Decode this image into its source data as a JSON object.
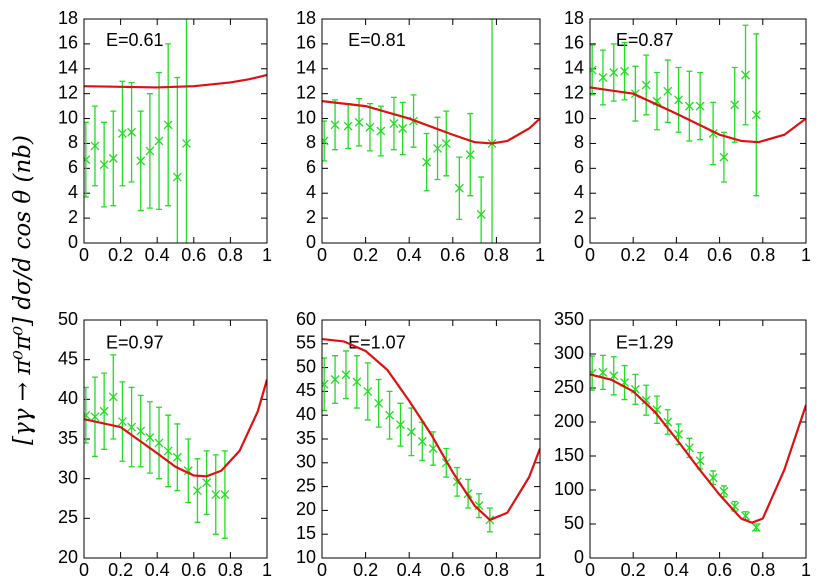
{
  "ylabel": "[γγ → π⁰π⁰] dσ/d cos θ (nb)",
  "chart_data": [
    {
      "type": "errorbar",
      "annotation": "E=0.61",
      "xlim": [
        0,
        1
      ],
      "ylim": [
        0,
        18
      ],
      "xticks": [
        0,
        0.2,
        0.4,
        0.6,
        0.8,
        1
      ],
      "yticks": [
        0,
        2,
        4,
        6,
        8,
        10,
        12,
        14,
        16,
        18
      ],
      "series": [
        {
          "type": "errorbar",
          "color": "#22dd22",
          "x": [
            0.01,
            0.06,
            0.11,
            0.16,
            0.21,
            0.26,
            0.31,
            0.36,
            0.41,
            0.46,
            0.51,
            0.56
          ],
          "values": [
            6.7,
            7.8,
            6.3,
            6.8,
            8.8,
            8.9,
            6.6,
            7.4,
            8.2,
            9.5,
            5.3,
            8.0
          ],
          "errors": [
            3.0,
            3.2,
            3.4,
            3.8,
            4.2,
            4.0,
            4.0,
            4.6,
            5.5,
            6.5,
            8.0,
            12.0
          ]
        },
        {
          "type": "line",
          "color": "#dd1111",
          "x": [
            0,
            0.2,
            0.4,
            0.6,
            0.8,
            0.9,
            1
          ],
          "values": [
            12.6,
            12.55,
            12.5,
            12.6,
            12.9,
            13.15,
            13.5
          ]
        }
      ]
    },
    {
      "type": "errorbar",
      "annotation": "E=0.81",
      "xlim": [
        0,
        1
      ],
      "ylim": [
        0,
        18
      ],
      "xticks": [
        0,
        0.2,
        0.4,
        0.6,
        0.8,
        1
      ],
      "yticks": [
        0,
        2,
        4,
        6,
        8,
        10,
        12,
        14,
        16,
        18
      ],
      "series": [
        {
          "type": "errorbar",
          "color": "#22dd22",
          "x": [
            0.01,
            0.06,
            0.12,
            0.17,
            0.22,
            0.27,
            0.33,
            0.37,
            0.42,
            0.48,
            0.53,
            0.57,
            0.63,
            0.68,
            0.73,
            0.78
          ],
          "values": [
            8.2,
            9.5,
            9.4,
            9.7,
            9.3,
            9.0,
            9.6,
            9.2,
            9.8,
            6.5,
            7.6,
            8.0,
            4.4,
            7.1,
            2.3,
            8.0
          ],
          "errors": [
            1.6,
            2.0,
            1.8,
            1.9,
            1.9,
            2.0,
            2.1,
            2.1,
            2.1,
            2.3,
            2.5,
            2.6,
            2.5,
            3.3,
            3.0,
            10.0
          ]
        },
        {
          "type": "line",
          "color": "#dd1111",
          "x": [
            0,
            0.2,
            0.4,
            0.6,
            0.7,
            0.78,
            0.85,
            0.95,
            1
          ],
          "values": [
            11.4,
            11.0,
            10.0,
            8.7,
            8.1,
            8.0,
            8.2,
            9.2,
            10.0
          ]
        }
      ]
    },
    {
      "type": "errorbar",
      "annotation": "E=0.87",
      "xlim": [
        0,
        1
      ],
      "ylim": [
        0,
        18
      ],
      "xticks": [
        0,
        0.2,
        0.4,
        0.6,
        0.8,
        1
      ],
      "yticks": [
        0,
        2,
        4,
        6,
        8,
        10,
        12,
        14,
        16,
        18
      ],
      "series": [
        {
          "type": "errorbar",
          "color": "#22dd22",
          "x": [
            0.01,
            0.06,
            0.11,
            0.16,
            0.21,
            0.26,
            0.31,
            0.36,
            0.41,
            0.46,
            0.51,
            0.57,
            0.62,
            0.67,
            0.72,
            0.77
          ],
          "values": [
            13.9,
            13.3,
            13.7,
            13.8,
            12.0,
            12.7,
            11.4,
            12.2,
            11.5,
            11.0,
            11.0,
            8.8,
            6.9,
            11.1,
            13.5,
            10.3
          ],
          "errors": [
            2.0,
            2.2,
            2.3,
            2.3,
            2.2,
            2.4,
            2.3,
            2.5,
            2.6,
            2.8,
            2.7,
            2.5,
            2.0,
            3.0,
            4.0,
            6.5
          ]
        },
        {
          "type": "line",
          "color": "#dd1111",
          "x": [
            0,
            0.2,
            0.4,
            0.6,
            0.7,
            0.78,
            0.9,
            1
          ],
          "values": [
            12.5,
            12.0,
            10.4,
            8.7,
            8.2,
            8.1,
            8.7,
            10.0
          ]
        }
      ]
    },
    {
      "type": "errorbar",
      "annotation": "E=0.97",
      "xlim": [
        0,
        1
      ],
      "ylim": [
        20,
        50
      ],
      "xticks": [
        0,
        0.2,
        0.4,
        0.6,
        0.8,
        1
      ],
      "yticks": [
        20,
        25,
        30,
        35,
        40,
        45,
        50
      ],
      "series": [
        {
          "type": "errorbar",
          "color": "#22dd22",
          "x": [
            0.01,
            0.06,
            0.11,
            0.16,
            0.21,
            0.26,
            0.31,
            0.36,
            0.41,
            0.46,
            0.51,
            0.57,
            0.62,
            0.67,
            0.72,
            0.77
          ],
          "values": [
            38.0,
            37.8,
            38.5,
            40.3,
            37.2,
            36.5,
            36.0,
            35.2,
            34.5,
            33.5,
            32.7,
            31.0,
            28.5,
            29.5,
            28.0,
            28.0
          ],
          "errors": [
            3.5,
            5.0,
            4.8,
            5.3,
            5.0,
            5.0,
            4.5,
            4.5,
            4.5,
            4.5,
            4.2,
            4.0,
            4.0,
            4.0,
            5.0,
            5.5
          ]
        },
        {
          "type": "line",
          "color": "#dd1111",
          "x": [
            0,
            0.2,
            0.4,
            0.5,
            0.6,
            0.67,
            0.75,
            0.85,
            0.95,
            1
          ],
          "values": [
            37.5,
            36.5,
            33.2,
            31.5,
            30.4,
            30.3,
            31.0,
            33.5,
            38.5,
            42.5
          ]
        }
      ]
    },
    {
      "type": "errorbar",
      "annotation": "E=1.07",
      "xlim": [
        0,
        1
      ],
      "ylim": [
        10,
        60
      ],
      "xticks": [
        0,
        0.2,
        0.4,
        0.6,
        0.8,
        1
      ],
      "yticks": [
        10,
        15,
        20,
        25,
        30,
        35,
        40,
        45,
        50,
        55,
        60
      ],
      "series": [
        {
          "type": "errorbar",
          "color": "#22dd22",
          "x": [
            0.01,
            0.06,
            0.11,
            0.16,
            0.21,
            0.26,
            0.31,
            0.36,
            0.41,
            0.46,
            0.51,
            0.57,
            0.62,
            0.67,
            0.72,
            0.77
          ],
          "values": [
            46.5,
            47.5,
            48.5,
            47.0,
            45.0,
            42.5,
            40.0,
            38.0,
            36.5,
            34.5,
            33.0,
            30.0,
            26.0,
            23.5,
            21.0,
            18.0
          ],
          "errors": [
            5.5,
            5.0,
            5.0,
            5.5,
            6.0,
            5.0,
            5.0,
            4.5,
            5.0,
            4.0,
            3.5,
            3.0,
            3.0,
            3.0,
            2.5,
            2.5
          ]
        },
        {
          "type": "line",
          "color": "#dd1111",
          "x": [
            0,
            0.1,
            0.2,
            0.3,
            0.4,
            0.5,
            0.6,
            0.7,
            0.77,
            0.85,
            0.95,
            1
          ],
          "values": [
            56,
            55.5,
            53.5,
            49.5,
            43,
            36,
            28,
            21,
            18,
            19.5,
            27,
            33
          ]
        }
      ]
    },
    {
      "type": "errorbar",
      "annotation": "E=1.29",
      "xlim": [
        0,
        1
      ],
      "ylim": [
        0,
        350
      ],
      "xticks": [
        0,
        0.2,
        0.4,
        0.6,
        0.8,
        1
      ],
      "yticks": [
        0,
        50,
        100,
        150,
        200,
        250,
        300,
        350
      ],
      "series": [
        {
          "type": "errorbar",
          "color": "#22dd22",
          "x": [
            0.01,
            0.06,
            0.11,
            0.16,
            0.21,
            0.26,
            0.31,
            0.36,
            0.41,
            0.46,
            0.51,
            0.57,
            0.62,
            0.67,
            0.72,
            0.77
          ],
          "values": [
            272,
            273,
            268,
            258,
            248,
            232,
            218,
            200,
            182,
            162,
            143,
            118,
            98,
            76,
            62,
            45
          ],
          "errors": [
            25,
            25,
            28,
            25,
            22,
            22,
            20,
            18,
            15,
            14,
            12,
            10,
            8,
            7,
            6,
            5
          ]
        },
        {
          "type": "line",
          "color": "#dd1111",
          "x": [
            0,
            0.1,
            0.2,
            0.3,
            0.4,
            0.5,
            0.6,
            0.7,
            0.75,
            0.8,
            0.9,
            1
          ],
          "values": [
            270,
            262,
            245,
            215,
            175,
            133,
            93,
            58,
            52,
            58,
            130,
            225
          ]
        }
      ]
    }
  ]
}
